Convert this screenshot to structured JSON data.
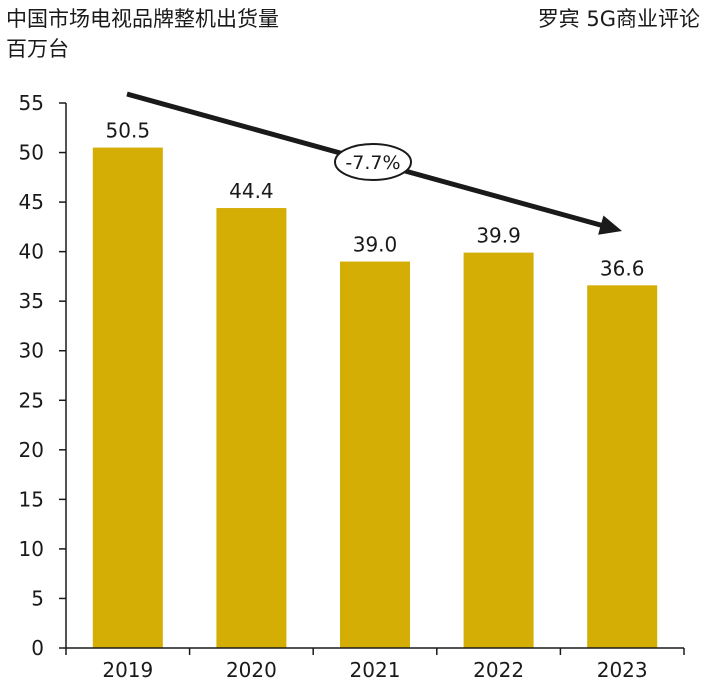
{
  "header": {
    "title": "中国市场电视品牌整机出货量",
    "unit": "百万台",
    "source": "罗宾 5G商业评论"
  },
  "colors": {
    "bar": "#d4ae05",
    "axis": "#1a1a1a",
    "arrow": "#1a1a1a"
  },
  "chart_data": {
    "type": "bar",
    "title": "中国市场电视品牌整机出货量",
    "ylabel": "百万台",
    "xlabel": "",
    "categories": [
      "2019",
      "2020",
      "2021",
      "2022",
      "2023"
    ],
    "values": [
      50.5,
      44.4,
      39.0,
      39.9,
      36.6
    ],
    "value_labels": [
      "50.5",
      "44.4",
      "39.0",
      "39.9",
      "36.6"
    ],
    "ylim": [
      0,
      55
    ],
    "yticks": [
      0,
      5,
      10,
      15,
      20,
      25,
      30,
      35,
      40,
      45,
      50,
      55
    ],
    "grid": false,
    "annotation": {
      "text": "-7.7%",
      "kind": "trend-arrow",
      "from_category": "2019",
      "to_category": "2023"
    }
  }
}
